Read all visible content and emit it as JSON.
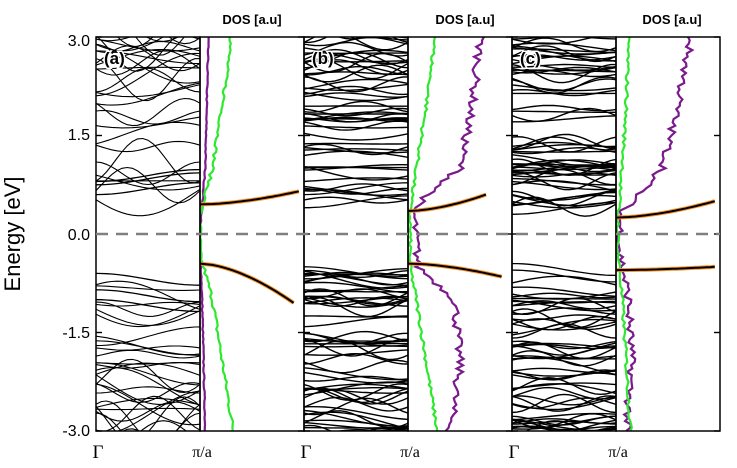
{
  "chart_data": {
    "type": "line",
    "description_kind": "band structure with density of states",
    "ylabel": "Energy [eV]",
    "ylim": [
      -3.0,
      3.0
    ],
    "yticks": [
      {
        "value": 3.0,
        "label": "3.0"
      },
      {
        "value": 1.5,
        "label": "1.5"
      },
      {
        "value": 0.0,
        "label": "0.0"
      },
      {
        "value": -1.5,
        "label": "-1.5"
      },
      {
        "value": -3.0,
        "label": "-3.0"
      }
    ],
    "fermi_level": 0.0,
    "xtick_labels": {
      "gamma": "Γ",
      "zone_edge": "π/a"
    },
    "dos_label": "DOS [a.u]",
    "line_colors": {
      "bands": "#000000",
      "total_dos": "#000000",
      "green": "#2ee82e",
      "purple": "#7a1a8c",
      "orange": "#f5902a",
      "fermi": "#808080"
    },
    "panels": [
      {
        "tag": "(a)",
        "dos_title": "DOS [a.u]",
        "gap": [
          -0.45,
          0.45
        ],
        "bands": {
          "conduction": [
            0.45,
            3.0
          ],
          "valence": [
            -3.0,
            -0.45
          ],
          "edge_states": [
            0.6,
            0.75,
            0.8,
            -0.6,
            -0.85,
            -1.0
          ]
        },
        "dos_total": {
          "energy": [
            0.45,
            0.5,
            0.55,
            0.6,
            0.65,
            0.0,
            -0.4,
            -0.5,
            -0.7,
            -0.9,
            -1.05
          ],
          "value": [
            0.0,
            0.1,
            0.35,
            0.7,
            0.95,
            0.0,
            0.0,
            0.05,
            0.2,
            0.6,
            0.9
          ]
        },
        "dos_green": {
          "energy": [
            -3.0,
            -2.0,
            -1.0,
            -0.3,
            0.3,
            1.0,
            2.0,
            3.0
          ],
          "value": [
            0.32,
            0.22,
            0.12,
            0.0,
            0.0,
            0.12,
            0.22,
            0.3
          ]
        },
        "dos_purple": {
          "energy": [
            -3.0,
            -1.0,
            0.0,
            1.0,
            3.0
          ],
          "value": [
            0.05,
            0.02,
            0.0,
            0.05,
            0.08
          ]
        }
      },
      {
        "tag": "(b)",
        "dos_title": "DOS [a.u]",
        "gap": [
          -0.45,
          0.35
        ],
        "bands": {
          "conduction": [
            0.35,
            3.0
          ],
          "valence": [
            -3.0,
            -0.45
          ],
          "edge_states": [
            0.4,
            0.6,
            -0.5,
            -0.6
          ]
        },
        "dos_total": {
          "energy": [
            0.35,
            0.4,
            0.5,
            0.6,
            0.0,
            -0.5,
            -0.55,
            -0.6,
            -0.65
          ],
          "value": [
            0.0,
            0.2,
            0.55,
            0.75,
            0.0,
            0.0,
            0.4,
            0.75,
            0.9
          ]
        },
        "dos_green": {
          "energy": [
            -3.0,
            -2.0,
            -1.0,
            -0.5,
            0.4,
            1.0,
            2.0,
            3.0
          ],
          "value": [
            0.28,
            0.18,
            0.08,
            0.02,
            0.02,
            0.08,
            0.18,
            0.26
          ]
        },
        "dos_purple": {
          "energy": [
            -3.0,
            -2.0,
            -1.0,
            -0.5,
            0.4,
            1.0,
            2.0,
            3.0
          ],
          "value": [
            0.4,
            0.5,
            0.45,
            0.1,
            0.05,
            0.5,
            0.62,
            0.7
          ]
        }
      },
      {
        "tag": "(c)",
        "dos_title": "DOS [a.u]",
        "gap": [
          -0.55,
          0.25
        ],
        "bands": {
          "conduction": [
            0.25,
            3.0
          ],
          "valence": [
            -3.0,
            -0.55
          ],
          "edge_states": [
            0.3,
            0.45,
            -0.45,
            -0.55
          ]
        },
        "dos_total": {
          "energy": [
            0.25,
            0.35,
            0.45,
            0.5,
            0.0,
            -0.3,
            -0.4,
            -0.45,
            -0.5
          ],
          "value": [
            0.0,
            0.3,
            0.75,
            0.95,
            0.0,
            0.05,
            0.4,
            0.8,
            0.95
          ]
        },
        "dos_green": {
          "energy": [
            -3.0,
            -2.0,
            -1.0,
            -0.3,
            0.3,
            1.0,
            2.0,
            3.0
          ],
          "value": [
            0.14,
            0.1,
            0.06,
            0.02,
            0.02,
            0.06,
            0.1,
            0.12
          ]
        },
        "dos_purple": {
          "energy": [
            -3.0,
            -2.0,
            -1.0,
            -0.3,
            0.3,
            1.0,
            2.0,
            3.0
          ],
          "value": [
            0.1,
            0.15,
            0.12,
            0.04,
            0.04,
            0.45,
            0.6,
            0.72
          ]
        }
      }
    ]
  }
}
